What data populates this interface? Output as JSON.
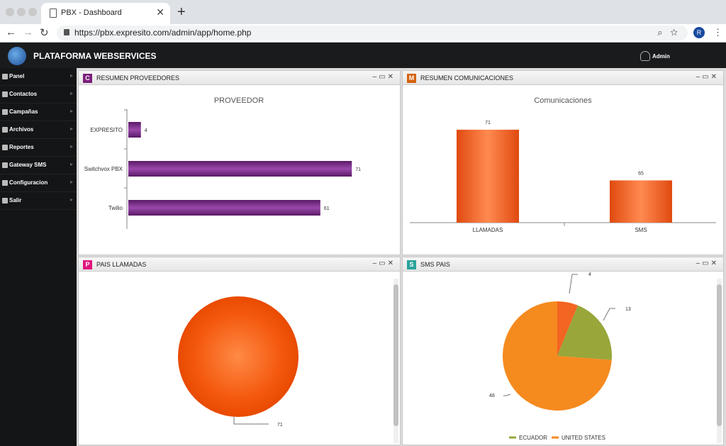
{
  "browser": {
    "tab_title": "PBX - Dashboard",
    "tab_close": "✕",
    "new_tab": "+",
    "url": "https://pbx.expresito.com/admin/app/home.php",
    "profile_initial": "R"
  },
  "app": {
    "title": "PLATAFORMA WEBSERVICES",
    "user": "Admin"
  },
  "sidebar": {
    "items": [
      {
        "label": "Panel"
      },
      {
        "label": "Contactos"
      },
      {
        "label": "Campañas"
      },
      {
        "label": "Archivos"
      },
      {
        "label": "Reportes"
      },
      {
        "label": "Gateway SMS"
      },
      {
        "label": "Configuracion"
      },
      {
        "label": "Salir"
      }
    ]
  },
  "panels": {
    "proveedores": {
      "badge": "C",
      "badge_color": "#7b1f7b",
      "title": "RESUMEN PROVEEDORES"
    },
    "comunicaciones": {
      "badge": "M",
      "badge_color": "#d5630d",
      "title": "RESUMEN COMUNICACIONES"
    },
    "pais_llamadas": {
      "badge": "P",
      "badge_color": "#e0157d",
      "title": "PAIS LLAMADAS"
    },
    "sms_pais": {
      "badge": "S",
      "badge_color": "#2aa39a",
      "title": "SMS PAIS"
    }
  },
  "chart_data": [
    {
      "type": "bar",
      "orientation": "horizontal",
      "title": "PROVEEDOR",
      "categories": [
        "EXPRESITO",
        "Switchvox PBX",
        "Twilio"
      ],
      "values": [
        4,
        71,
        61
      ],
      "color": "#7b2a86",
      "xlim": [
        0,
        75
      ]
    },
    {
      "type": "bar",
      "title": "Comunicaciones",
      "categories": [
        "LLAMADAS",
        "SMS"
      ],
      "values": [
        71,
        65
      ],
      "ylim": [
        60,
        72
      ],
      "color": "#f26522"
    },
    {
      "type": "pie",
      "values": [
        71
      ],
      "colors": [
        "#f4590f"
      ]
    },
    {
      "type": "pie",
      "slices": [
        {
          "value": 4,
          "color": "#f26522"
        },
        {
          "value": 13,
          "color": "#98a63a"
        },
        {
          "value": 48,
          "color": "#f58a1f"
        }
      ],
      "legend": [
        {
          "name": "ECUADOR",
          "color": "#98a63a"
        },
        {
          "name": "UNITED STATES",
          "color": "#f58a1f"
        }
      ],
      "legend_position": "bottom"
    }
  ]
}
